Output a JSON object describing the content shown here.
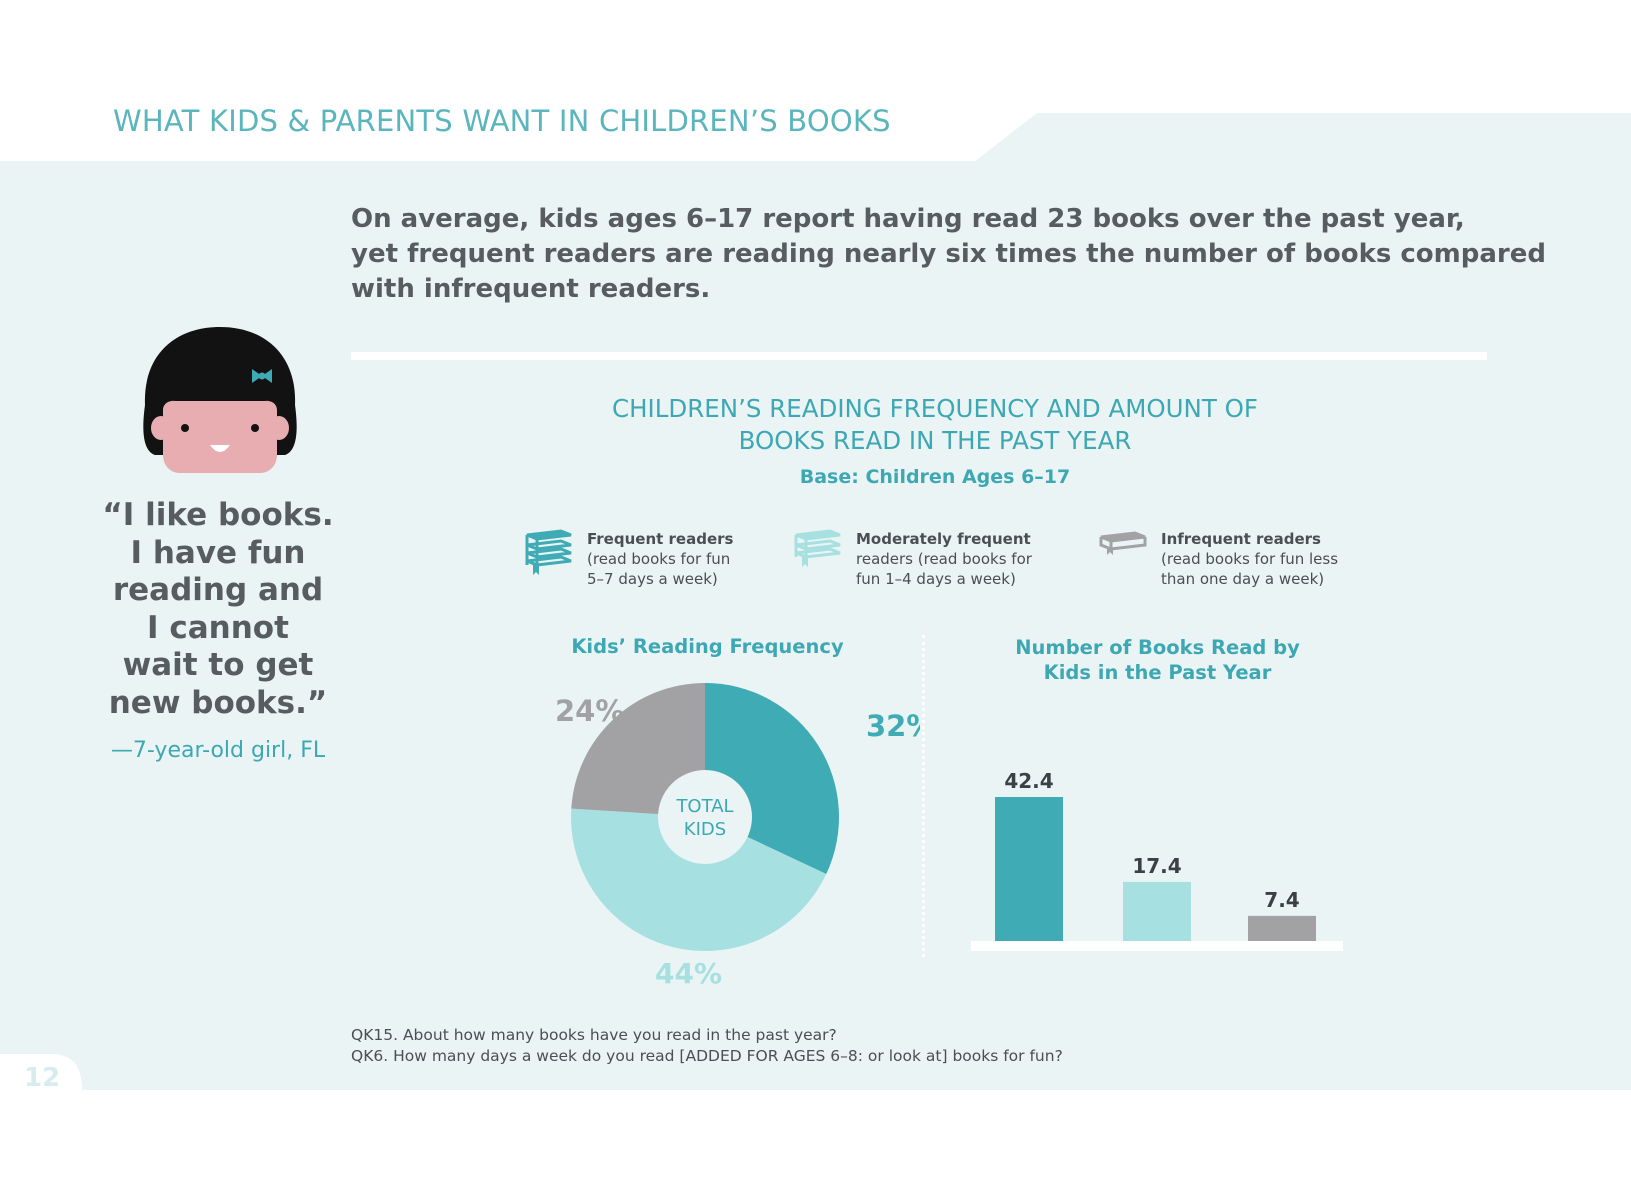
{
  "header": {
    "title": "WHAT KIDS & PARENTS WANT IN CHILDREN’S BOOKS"
  },
  "intro": {
    "line1": "On average, kids ages 6–17 report having read 23 books over the past year,",
    "line2": "yet frequent readers are reading nearly six times the number of books compared",
    "line3": "with infrequent readers."
  },
  "quote": {
    "lines": [
      "“I like books.",
      "I have fun",
      "reading and",
      "I cannot",
      "wait to get",
      "new books.”"
    ],
    "attribution": "—7-year-old girl, FL"
  },
  "chart": {
    "title_line1": "CHILDREN’S READING FREQUENCY AND AMOUNT OF",
    "title_line2": "BOOKS READ IN THE PAST YEAR",
    "base": "Base: Children Ages 6–17"
  },
  "legend": [
    {
      "name": "Frequent readers",
      "desc1": "(read books for fun",
      "desc2": "5–7 days a week)",
      "color": "#3eabb5",
      "icon": "stacked-books-icon"
    },
    {
      "name": "Moderately frequent",
      "desc1": "readers (read books for",
      "desc2": "fun 1–4 days a week)",
      "color": "#a6e0e0",
      "icon": "stacked-books-icon"
    },
    {
      "name": "Infrequent readers",
      "desc1": "(read books for fun less",
      "desc2": "than one day a week)",
      "color": "#a2a2a4",
      "icon": "single-book-icon"
    }
  ],
  "chart_data": [
    {
      "type": "pie",
      "title": "Kids’ Reading Frequency",
      "center_label": [
        "TOTAL",
        "KIDS"
      ],
      "labels": [
        "Frequent readers",
        "Moderately frequent readers",
        "Infrequent readers"
      ],
      "values": [
        32,
        44,
        24
      ],
      "value_labels": [
        "32%",
        "44%",
        "24%"
      ],
      "colors": [
        "#3eabb5",
        "#a6e0e0",
        "#a2a2a4"
      ]
    },
    {
      "type": "bar",
      "title": "Number of Books Read by Kids in the Past Year",
      "categories": [
        "Frequent readers",
        "Moderately frequent readers",
        "Infrequent readers"
      ],
      "values": [
        42.4,
        17.4,
        7.4
      ],
      "value_labels": [
        "42.4",
        "17.4",
        "7.4"
      ],
      "colors": [
        "#3eabb5",
        "#a6e0e0",
        "#a2a2a4"
      ],
      "ylim": [
        0,
        42.4
      ]
    }
  ],
  "footnote": {
    "line1": "QK15. About how many books have you read in the past year?",
    "line2": "QK6. How many days a week do you read [ADDED FOR AGES 6–8: or look at] books for fun?"
  },
  "page_number": "12",
  "colors": {
    "panel": "#eaf4f4",
    "accent": "#3eabb5",
    "text": "#575c61"
  }
}
